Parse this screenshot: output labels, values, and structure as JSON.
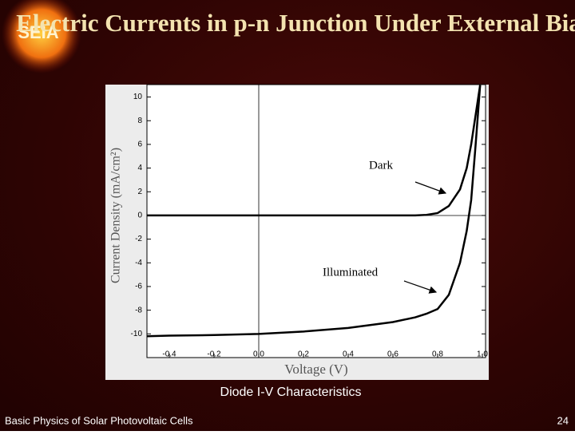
{
  "logo": "SEIA",
  "title": "Electric Currents in p-n Junction Under External Bias",
  "caption": "Diode I-V Characteristics",
  "footer": "Basic Physics of Solar Photovoltaic Cells",
  "page_number": "24",
  "chart_data": {
    "type": "line",
    "x_label": "Voltage (V)",
    "y_label": "Current Density (mA/cm²)",
    "x": [
      -0.5,
      -0.4,
      -0.2,
      0,
      0.2,
      0.4,
      0.6,
      0.7,
      0.75,
      0.8,
      0.85,
      0.9,
      0.93,
      0.95,
      0.97,
      0.99
    ],
    "series": [
      {
        "name": "Dark",
        "color": "#000000",
        "values": [
          0,
          0,
          0,
          0,
          0,
          0,
          0,
          0,
          0.05,
          0.2,
          0.8,
          2.2,
          4,
          6,
          8.5,
          11
        ]
      },
      {
        "name": "Illuminated",
        "color": "#000000",
        "values": [
          -10.2,
          -10.15,
          -10.1,
          -10.0,
          -9.8,
          -9.5,
          -9.0,
          -8.6,
          -8.3,
          -7.9,
          -6.7,
          -4.0,
          -1.3,
          1.3,
          6,
          11
        ]
      }
    ],
    "xlim": [
      -0.5,
      1.0
    ],
    "ylim": [
      -12,
      11
    ],
    "xticks": [
      -0.4,
      -0.2,
      {
        "value": 0,
        "label": "0.0"
      },
      0.2,
      0.4,
      0.6,
      0.8,
      {
        "value": 1,
        "label": "1.0"
      }
    ],
    "yticks": [
      -10,
      -8,
      -6,
      -4,
      -2,
      0,
      2,
      4,
      6,
      8,
      10
    ],
    "grid": false
  }
}
